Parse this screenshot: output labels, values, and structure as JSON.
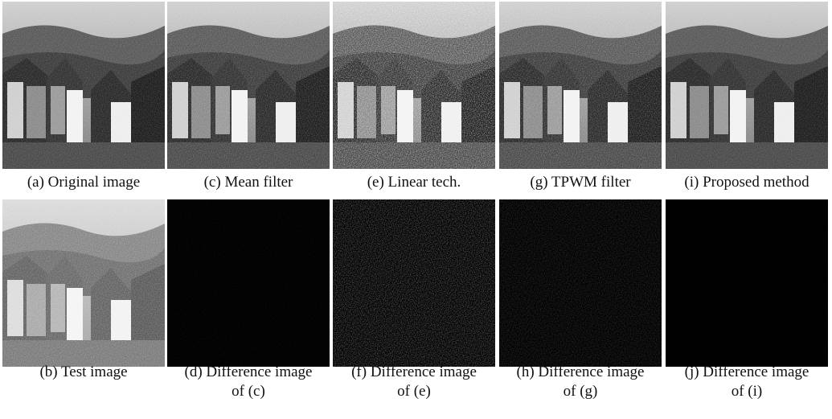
{
  "figure": {
    "rows": [
      [
        {
          "caption": [
            "(a) Original image"
          ]
        },
        {
          "caption": [
            "(c) Mean filter"
          ]
        },
        {
          "caption": [
            "(e) Linear tech."
          ]
        },
        {
          "caption": [
            "(g) TPWM filter"
          ]
        },
        {
          "caption": [
            "(i) Proposed method"
          ]
        }
      ],
      [
        {
          "caption": [
            "(b) Test image"
          ]
        },
        {
          "caption": [
            "(d) Difference image",
            "of (c)"
          ]
        },
        {
          "caption": [
            "(f) Difference image",
            "of (e)"
          ]
        },
        {
          "caption": [
            "(h) Difference image",
            "of (g)"
          ]
        },
        {
          "caption": [
            "(j) Difference image",
            "of (i)"
          ]
        }
      ]
    ]
  }
}
